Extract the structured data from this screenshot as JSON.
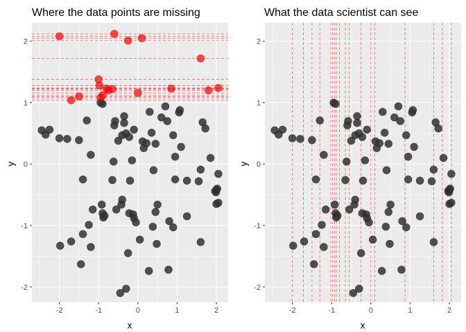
{
  "chart_data": [
    {
      "type": "scatter",
      "title": "Where the data points are missing",
      "xlabel": "x",
      "ylabel": "y",
      "xlim": [
        -2.7,
        2.3
      ],
      "ylim": [
        -2.25,
        2.3
      ],
      "xticks": [
        -2,
        -1,
        0,
        1,
        2
      ],
      "yticks": [
        -2,
        -1,
        0,
        1,
        2
      ],
      "grid": true,
      "observed_points": [
        [
          -2.45,
          0.55
        ],
        [
          -2.35,
          0.48
        ],
        [
          -2.25,
          0.56
        ],
        [
          -2.0,
          0.42
        ],
        [
          -1.8,
          0.41
        ],
        [
          -1.5,
          0.39
        ],
        [
          -1.3,
          0.71
        ],
        [
          -1.2,
          0.15
        ],
        [
          -1.4,
          -0.25
        ],
        [
          -1.15,
          -0.74
        ],
        [
          -1.25,
          -0.99
        ],
        [
          -1.4,
          -1.14
        ],
        [
          -1.2,
          -1.35
        ],
        [
          -1.45,
          -1.63
        ],
        [
          -1.7,
          -1.26
        ],
        [
          -1.98,
          -1.33
        ],
        [
          -0.95,
          1.0
        ],
        [
          -0.9,
          0.98
        ],
        [
          -0.92,
          -0.66
        ],
        [
          -0.9,
          -0.8
        ],
        [
          -0.88,
          -0.87
        ],
        [
          -0.85,
          -0.84
        ],
        [
          -0.65,
          -0.26
        ],
        [
          -0.62,
          0.04
        ],
        [
          -0.55,
          -0.74
        ],
        [
          -0.6,
          0.63
        ],
        [
          -0.58,
          0.7
        ],
        [
          -0.5,
          0.38
        ],
        [
          -0.4,
          0.47
        ],
        [
          -0.35,
          0.78
        ],
        [
          -0.35,
          0.67
        ],
        [
          -0.3,
          0.5
        ],
        [
          -0.22,
          0.44
        ],
        [
          -0.1,
          0.56
        ],
        [
          -0.15,
          0.06
        ],
        [
          -0.2,
          -0.27
        ],
        [
          -0.42,
          -0.66
        ],
        [
          -0.4,
          -0.58
        ],
        [
          -0.22,
          -0.8
        ],
        [
          -0.12,
          -0.82
        ],
        [
          -0.1,
          -0.88
        ],
        [
          -0.05,
          -0.95
        ],
        [
          -0.25,
          -1.45
        ],
        [
          -0.3,
          -2.03
        ],
        [
          -0.45,
          -2.1
        ],
        [
          0.05,
          -1.23
        ],
        [
          0.15,
          0.26
        ],
        [
          0.12,
          0.37
        ],
        [
          0.22,
          0.34
        ],
        [
          0.3,
          0.85
        ],
        [
          0.35,
          0.51
        ],
        [
          0.45,
          0.33
        ],
        [
          0.4,
          -0.1
        ],
        [
          0.5,
          -0.66
        ],
        [
          0.45,
          -0.78
        ],
        [
          0.38,
          -1.02
        ],
        [
          0.48,
          -1.3
        ],
        [
          0.28,
          -1.74
        ],
        [
          0.6,
          0.76
        ],
        [
          0.7,
          0.94
        ],
        [
          0.75,
          0.7
        ],
        [
          0.9,
          0.47
        ],
        [
          0.95,
          0.12
        ],
        [
          0.95,
          -0.25
        ],
        [
          0.8,
          -0.93
        ],
        [
          0.9,
          -1.03
        ],
        [
          0.78,
          -1.72
        ],
        [
          1.05,
          0.84
        ],
        [
          1.07,
          0.88
        ],
        [
          1.1,
          0.28
        ],
        [
          1.25,
          -0.27
        ],
        [
          1.25,
          -0.85
        ],
        [
          1.55,
          -0.28
        ],
        [
          1.6,
          -1.27
        ],
        [
          1.65,
          0.68
        ],
        [
          1.72,
          0.58
        ],
        [
          1.6,
          -0.09
        ],
        [
          1.85,
          0.1
        ],
        [
          2.0,
          -0.42
        ],
        [
          1.97,
          -0.44
        ],
        [
          1.99,
          -0.46
        ],
        [
          2.02,
          -0.4
        ],
        [
          2.05,
          -0.16
        ],
        [
          2.0,
          -0.65
        ],
        [
          2.05,
          -0.63
        ]
      ],
      "missing_points": [
        [
          -2.0,
          2.08
        ],
        [
          -1.7,
          1.04
        ],
        [
          -1.5,
          1.1
        ],
        [
          -1.0,
          1.38
        ],
        [
          -0.98,
          1.28
        ],
        [
          -0.9,
          1.12
        ],
        [
          -0.95,
          1.08
        ],
        [
          -0.8,
          1.23
        ],
        [
          -0.65,
          1.22
        ],
        [
          -0.75,
          1.2
        ],
        [
          -0.6,
          2.12
        ],
        [
          -0.25,
          2.01
        ],
        [
          0.0,
          1.16
        ],
        [
          0.1,
          2.05
        ],
        [
          0.85,
          1.23
        ],
        [
          1.6,
          1.72
        ],
        [
          1.8,
          1.2
        ],
        [
          2.05,
          1.24
        ]
      ],
      "missing_y_lines": [
        2.12,
        2.08,
        2.05,
        2.01,
        1.72,
        1.38,
        1.28,
        1.24,
        1.23,
        1.22,
        1.2,
        1.16,
        1.12,
        1.1,
        1.08,
        1.04
      ],
      "colors": {
        "panel": "#ebebeb",
        "grid": "#ffffff",
        "observed": "#333333",
        "missing": "#ff0000",
        "line": "#f26060"
      }
    },
    {
      "type": "scatter",
      "title": "What the data scientist can see",
      "xlabel": "x",
      "ylabel": "y",
      "xlim": [
        -2.7,
        2.3
      ],
      "ylim": [
        -2.25,
        2.3
      ],
      "xticks": [
        -2,
        -1,
        0,
        1,
        2
      ],
      "yticks": [
        -2,
        -1,
        0,
        1,
        2
      ],
      "grid": true,
      "observed_points": "same as panel 1",
      "missing_x_lines": [
        -2.0,
        -1.72,
        -1.5,
        -1.3,
        -1.02,
        -0.98,
        -0.92,
        -0.88,
        -0.8,
        -0.65,
        -0.55,
        -0.25,
        0.0,
        0.1,
        0.87,
        1.6,
        1.82,
        2.05
      ],
      "colors": {
        "panel": "#ebebeb",
        "grid": "#ffffff",
        "observed": "#333333",
        "line": "#f26060"
      }
    }
  ]
}
